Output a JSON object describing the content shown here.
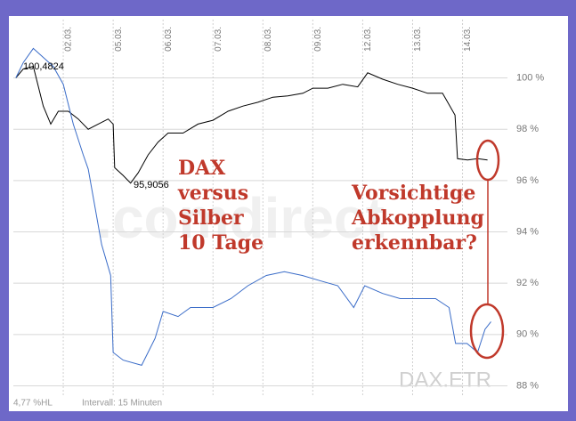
{
  "chart_data": {
    "type": "line",
    "series": [
      {
        "name": "DAX",
        "color": "#000000",
        "x": [
          -0.95,
          -0.8,
          -0.6,
          -0.4,
          -0.25,
          -0.1,
          0.1,
          0.3,
          0.5,
          0.7,
          0.9,
          1.0,
          1.03,
          1.2,
          1.35,
          1.5,
          1.7,
          1.9,
          2.1,
          2.4,
          2.7,
          3.0,
          3.3,
          3.6,
          3.9,
          4.2,
          4.5,
          4.8,
          5.0,
          5.3,
          5.6,
          5.9,
          6.1,
          6.4,
          6.7,
          7.0,
          7.3,
          7.6,
          7.85,
          7.9,
          8.1,
          8.3,
          8.5
        ],
        "values": [
          100.0,
          100.35,
          100.45,
          98.9,
          98.2,
          98.7,
          98.7,
          98.4,
          98.0,
          98.2,
          98.4,
          98.2,
          96.5,
          96.2,
          95.9,
          96.3,
          97.0,
          97.5,
          97.85,
          97.85,
          98.2,
          98.35,
          98.7,
          98.9,
          99.05,
          99.25,
          99.3,
          99.4,
          99.6,
          99.6,
          99.75,
          99.65,
          100.2,
          99.95,
          99.75,
          99.6,
          99.4,
          99.4,
          98.55,
          96.85,
          96.8,
          96.85,
          96.8
        ]
      },
      {
        "name": "Silber",
        "color": "#3a6cc8",
        "x": [
          -0.95,
          -0.8,
          -0.6,
          -0.4,
          -0.2,
          0.0,
          0.2,
          0.4,
          0.5,
          0.77,
          0.95,
          1.0,
          1.2,
          1.57,
          1.84,
          2.0,
          2.3,
          2.55,
          3.0,
          3.36,
          3.7,
          4.07,
          4.43,
          4.79,
          5.14,
          5.5,
          5.82,
          6.04,
          6.4,
          6.75,
          7.1,
          7.46,
          7.73,
          7.86,
          8.09,
          8.3,
          8.45,
          8.57
        ],
        "values": [
          100.0,
          100.6,
          101.15,
          100.8,
          100.45,
          99.75,
          98.2,
          97.0,
          96.45,
          93.5,
          92.3,
          89.3,
          89.0,
          88.8,
          89.85,
          90.9,
          90.7,
          91.05,
          91.05,
          91.4,
          91.9,
          92.3,
          92.45,
          92.3,
          92.1,
          91.9,
          91.05,
          91.9,
          91.6,
          91.4,
          91.4,
          91.4,
          91.05,
          89.65,
          89.65,
          89.3,
          90.2,
          90.5
        ]
      }
    ],
    "xlim": [
      -1,
      8.9
    ],
    "xticks": [
      {
        "value": 0,
        "label": "02.03."
      },
      {
        "value": 1,
        "label": "05.03."
      },
      {
        "value": 2,
        "label": "06.03."
      },
      {
        "value": 3,
        "label": "07.03."
      },
      {
        "value": 4,
        "label": "08.03."
      },
      {
        "value": 5,
        "label": "09.03."
      },
      {
        "value": 6,
        "label": "12.03."
      },
      {
        "value": 7,
        "label": "13.03."
      },
      {
        "value": 8,
        "label": "14.03."
      }
    ],
    "ylim": [
      87.6,
      102.1
    ],
    "yticks": [
      {
        "value": 100,
        "label": "100 %"
      },
      {
        "value": 98,
        "label": "98 %"
      },
      {
        "value": 96,
        "label": "96 %"
      },
      {
        "value": 94,
        "label": "94 %"
      },
      {
        "value": 92,
        "label": "92 %"
      },
      {
        "value": 90,
        "label": "90 %"
      },
      {
        "value": 88,
        "label": "88 %"
      }
    ],
    "grid": true,
    "point_labels": [
      "100,4824",
      "95,9056"
    ],
    "annotation_left": [
      "DAX",
      "versus",
      "Silber",
      "10 Tage"
    ],
    "annotation_right": [
      "Vorsichtige",
      "Abkopplung",
      "erkennbar?"
    ],
    "watermark": ".comdirect",
    "instrument": "DAX.ETR",
    "footer_hl": "4,77 %HL",
    "footer_interval": "Intervall: 15 Minuten"
  }
}
